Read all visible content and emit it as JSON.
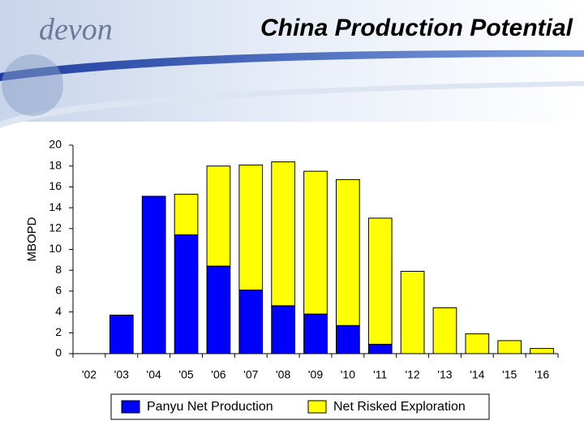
{
  "logo": "devon",
  "chart_data": {
    "type": "bar",
    "stacked": true,
    "title": "China Production Potential",
    "y_label": "MBOPD",
    "categories": [
      "'02",
      "'03",
      "'04",
      "'05",
      "'06",
      "'07",
      "'08",
      "'09",
      "'10",
      "'11",
      "'12",
      "'13",
      "'14",
      "'15",
      "'16"
    ],
    "series": [
      {
        "name": "Panyu Net Production",
        "color": "#0000ff",
        "values": [
          0,
          3.7,
          15.1,
          11.4,
          8.4,
          6.1,
          4.6,
          3.8,
          2.7,
          0.9,
          0,
          0,
          0,
          0,
          0
        ]
      },
      {
        "name": "Net Risked Exploration",
        "color": "#ffff00",
        "values": [
          0,
          0,
          0,
          3.9,
          9.6,
          12.0,
          13.8,
          13.7,
          14.0,
          12.1,
          7.9,
          4.4,
          1.9,
          1.25,
          0.5
        ]
      }
    ],
    "ylim": [
      0,
      20
    ],
    "yticks": [
      0,
      2,
      4,
      6,
      8,
      10,
      12,
      14,
      16,
      18,
      20
    ],
    "legend": "bottom"
  }
}
